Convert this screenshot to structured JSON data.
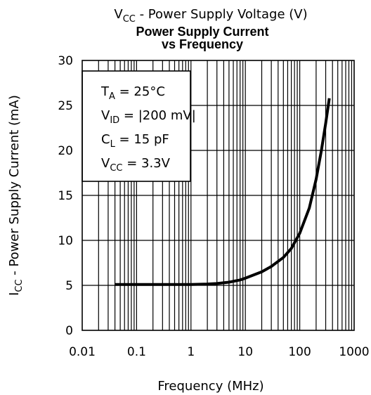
{
  "chart_data": {
    "type": "line",
    "top_label": "V",
    "top_label_sub": "CC",
    "top_label_rest": " - Power Supply Voltage (V)",
    "title_line1": "Power Supply Current",
    "title_line2": "vs Frequency",
    "ylabel": "I",
    "ylabel_sub": "CC",
    "ylabel_rest": " - Power Supply Current (mA)",
    "xlabel": "Frequency (MHz)",
    "x_scale": "log",
    "xlim": [
      0.01,
      1000
    ],
    "ylim": [
      0,
      30
    ],
    "x_ticks": [
      "0.01",
      "0.1",
      "1",
      "10",
      "100",
      "1000"
    ],
    "y_ticks": [
      "0",
      "5",
      "10",
      "15",
      "20",
      "25",
      "30"
    ],
    "grid": true,
    "legend_box": {
      "placement": "top-left",
      "lines": [
        {
          "main": "T",
          "sub": "A",
          "rest": " = 25°C"
        },
        {
          "main": "V",
          "sub": "ID",
          "rest": " = |200 mV|"
        },
        {
          "main": "C",
          "sub": "L",
          "rest": " = 15 pF"
        },
        {
          "main": "V",
          "sub": "CC",
          "rest": " = 3.3V"
        }
      ]
    },
    "series": [
      {
        "x": [
          0.04,
          0.1,
          0.3,
          1,
          2,
          3,
          5,
          8,
          10,
          20,
          30,
          50,
          70,
          100,
          150,
          200,
          250,
          300,
          350
        ],
        "y": [
          5.1,
          5.1,
          5.1,
          5.1,
          5.15,
          5.2,
          5.35,
          5.6,
          5.8,
          6.5,
          7.1,
          8.1,
          9.1,
          10.8,
          13.6,
          16.8,
          20.0,
          23.0,
          25.8
        ]
      }
    ],
    "line_color": "#000000"
  }
}
